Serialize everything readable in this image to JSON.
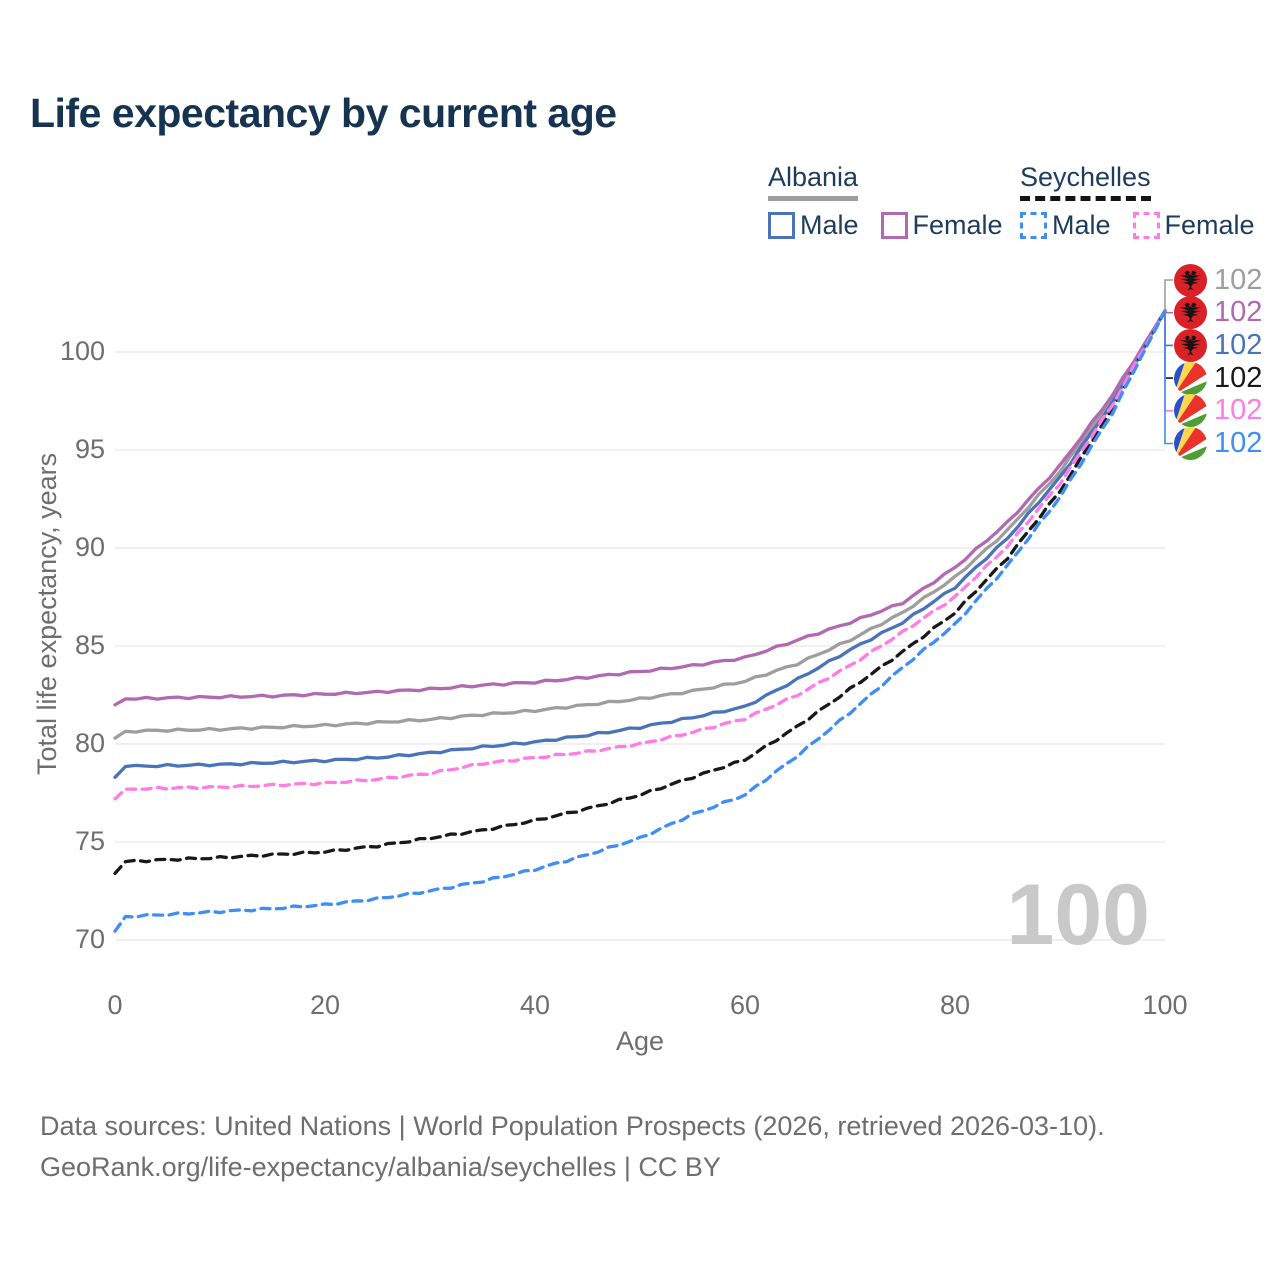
{
  "title": "Life expectancy by current age",
  "legend": {
    "albania": {
      "country": "Albania",
      "male_label": "Male",
      "female_label": "Female",
      "male_color": "#4a74b9",
      "female_color": "#b169b1",
      "line_style": "solid"
    },
    "seychelles": {
      "country": "Seychelles",
      "male_label": "Male",
      "female_label": "Female",
      "male_color": "#3e8ef5",
      "female_color": "#ff7ce5",
      "line_style": "dashed"
    }
  },
  "chart_data": {
    "type": "line",
    "title": "Life expectancy by current age",
    "xlabel": "Age",
    "ylabel": "Total life expectancy, years",
    "xlim": [
      0,
      100
    ],
    "ylim": [
      68.5,
      103
    ],
    "xticks": [
      0,
      20,
      40,
      60,
      80,
      100
    ],
    "yticks": [
      70,
      75,
      80,
      85,
      90,
      95,
      100
    ],
    "grid": "horizontal",
    "legend_position": "top-right",
    "sample_ages": [
      0,
      1,
      5,
      10,
      15,
      20,
      25,
      30,
      35,
      40,
      45,
      50,
      55,
      60,
      65,
      70,
      75,
      80,
      85,
      90,
      95,
      100
    ],
    "series": [
      {
        "name": "Albania Both sexes",
        "country": "Albania",
        "sex": "Both",
        "color": "#9e9e9e",
        "dash": "solid",
        "values": [
          80.3,
          80.65,
          80.7,
          80.75,
          80.85,
          80.95,
          81.1,
          81.25,
          81.5,
          81.7,
          82.0,
          82.3,
          82.7,
          83.2,
          84.1,
          85.3,
          86.7,
          88.5,
          90.9,
          93.9,
          97.6,
          102.1
        ],
        "end_label": "102"
      },
      {
        "name": "Albania Female",
        "country": "Albania",
        "sex": "Female",
        "color": "#b169b1",
        "dash": "solid",
        "values": [
          82.0,
          82.3,
          82.35,
          82.4,
          82.45,
          82.55,
          82.65,
          82.8,
          83.0,
          83.15,
          83.4,
          83.7,
          84.0,
          84.4,
          85.3,
          86.2,
          87.2,
          89.0,
          91.3,
          94.2,
          97.8,
          102.1
        ],
        "end_label": "102"
      },
      {
        "name": "Albania Male",
        "country": "Albania",
        "sex": "Male",
        "color": "#4a74b9",
        "dash": "solid",
        "values": [
          78.3,
          78.85,
          78.9,
          78.95,
          79.05,
          79.15,
          79.3,
          79.55,
          79.85,
          80.1,
          80.45,
          80.85,
          81.35,
          81.9,
          83.3,
          84.8,
          86.2,
          88.0,
          90.5,
          93.6,
          97.4,
          102.1
        ],
        "end_label": "102"
      },
      {
        "name": "Seychelles Both sexes",
        "country": "Seychelles",
        "sex": "Both",
        "color": "#191919",
        "dash": "dashed",
        "values": [
          73.4,
          74.0,
          74.1,
          74.2,
          74.35,
          74.5,
          74.8,
          75.2,
          75.6,
          76.1,
          76.7,
          77.4,
          78.3,
          79.2,
          80.9,
          82.8,
          84.7,
          86.7,
          89.5,
          92.9,
          97.1,
          102.1
        ],
        "end_label": "102"
      },
      {
        "name": "Seychelles Female",
        "country": "Seychelles",
        "sex": "Female",
        "color": "#ff7ce5",
        "dash": "dashed",
        "values": [
          77.2,
          77.7,
          77.75,
          77.8,
          77.9,
          78.0,
          78.2,
          78.5,
          79.0,
          79.3,
          79.6,
          80.0,
          80.6,
          81.3,
          82.5,
          84.0,
          85.7,
          87.5,
          90.1,
          93.3,
          97.3,
          102.1
        ],
        "end_label": "102"
      },
      {
        "name": "Seychelles Male",
        "country": "Seychelles",
        "sex": "Male",
        "color": "#3e8ef5",
        "dash": "dashed",
        "values": [
          70.45,
          71.2,
          71.3,
          71.45,
          71.6,
          71.8,
          72.1,
          72.5,
          73.0,
          73.6,
          74.35,
          75.2,
          76.4,
          77.4,
          79.4,
          81.6,
          83.9,
          86.1,
          89.1,
          92.6,
          96.9,
          102.1
        ],
        "end_label": "102"
      }
    ]
  },
  "right_labels": [
    {
      "flag": "albania",
      "series": "Albania Both sexes",
      "value": "102",
      "color": "#9e9e9e"
    },
    {
      "flag": "albania",
      "series": "Albania Female",
      "value": "102",
      "color": "#b169b1"
    },
    {
      "flag": "albania",
      "series": "Albania Male",
      "value": "102",
      "color": "#4a74b9"
    },
    {
      "flag": "seychelles",
      "series": "Seychelles Both sexes",
      "value": "102",
      "color": "#191919"
    },
    {
      "flag": "seychelles",
      "series": "Seychelles Female",
      "value": "102",
      "color": "#ff7ce5"
    },
    {
      "flag": "seychelles",
      "series": "Seychelles Male",
      "value": "102",
      "color": "#3e8ef5"
    }
  ],
  "watermark": "100",
  "footer": {
    "line1": "Data sources: United Nations | World Population Prospects (2026, retrieved 2026-03-10).",
    "line2": "GeoRank.org/life-expectancy/albania/seychelles | CC BY"
  }
}
